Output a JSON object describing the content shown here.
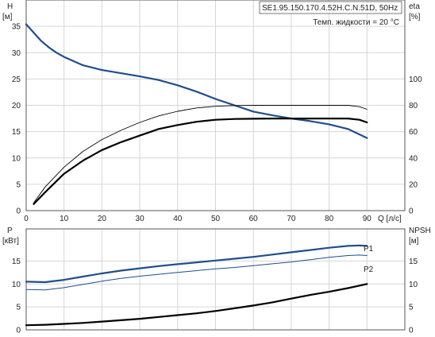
{
  "chart_data": [
    {
      "type": "line",
      "title": "SE1.95.150.170.4.52H.C.N.51D, 50Hz",
      "note": "Темп. жидкости = 20 °C",
      "xlabel": "Q [л/с]",
      "xlim": [
        0,
        100
      ],
      "xticks": [
        0,
        10,
        20,
        30,
        40,
        50,
        60,
        70,
        80,
        90
      ],
      "grid": true,
      "y_left": {
        "label_top": "H",
        "label_unit": "[м]",
        "lim": [
          0,
          40
        ],
        "ticks": [
          0,
          5,
          10,
          15,
          20,
          25,
          30,
          35
        ]
      },
      "y_right": {
        "label_top": "eta",
        "label_unit": "[%]",
        "lim": [
          0,
          160
        ],
        "ticks": [
          0,
          20,
          40,
          60,
          80,
          100
        ]
      },
      "series": [
        {
          "axis": "left",
          "color": "#1f4e8c",
          "width": 2.2,
          "x": [
            0,
            2,
            4,
            6,
            8,
            10,
            15,
            20,
            25,
            30,
            35,
            40,
            45,
            50,
            55,
            60,
            65,
            70,
            75,
            80,
            85,
            90
          ],
          "y": [
            35.4,
            33.8,
            32.2,
            31.0,
            30.0,
            29.2,
            27.6,
            26.7,
            26.1,
            25.5,
            24.8,
            23.8,
            22.6,
            21.2,
            20.0,
            18.8,
            18.1,
            17.5,
            17.0,
            16.4,
            15.5,
            13.8
          ]
        },
        {
          "axis": "right",
          "color": "#000000",
          "width": 0.9,
          "x": [
            2,
            5,
            10,
            15,
            20,
            25,
            30,
            35,
            40,
            45,
            50,
            55,
            60,
            65,
            70,
            75,
            80,
            85,
            88,
            90
          ],
          "y": [
            6,
            18,
            33,
            45,
            54,
            61,
            67,
            72,
            75.5,
            78,
            79.3,
            79.8,
            80,
            80,
            80,
            80,
            80,
            80,
            79,
            77
          ]
        },
        {
          "axis": "right",
          "color": "#000000",
          "width": 2.2,
          "x": [
            2,
            5,
            10,
            15,
            20,
            25,
            30,
            35,
            40,
            45,
            50,
            55,
            60,
            65,
            70,
            75,
            80,
            85,
            88,
            90
          ],
          "y": [
            5,
            14,
            28,
            38,
            46,
            52,
            57,
            62,
            65,
            67.5,
            69,
            69.6,
            69.8,
            70,
            70,
            70,
            70,
            70,
            69,
            67
          ]
        }
      ]
    },
    {
      "type": "line",
      "xlim": [
        0,
        100
      ],
      "grid": true,
      "y_left": {
        "label_top": "P",
        "label_unit": "[кВт]",
        "lim": [
          0,
          22
        ],
        "ticks": [
          0,
          5,
          10,
          15
        ]
      },
      "y_right": {
        "label_top": "NPSH",
        "label_unit": "[м]",
        "lim": [
          0,
          22
        ],
        "ticks": [
          0,
          5,
          10,
          15
        ]
      },
      "series": [
        {
          "name": "P1",
          "axis": "left",
          "color": "#1f4e8c",
          "width": 2.2,
          "x": [
            0,
            5,
            10,
            15,
            20,
            25,
            30,
            35,
            40,
            45,
            50,
            55,
            60,
            65,
            70,
            75,
            80,
            85,
            88,
            90
          ],
          "y": [
            10.5,
            10.4,
            10.9,
            11.6,
            12.3,
            12.9,
            13.4,
            13.9,
            14.3,
            14.7,
            15.1,
            15.5,
            15.9,
            16.4,
            16.9,
            17.4,
            17.9,
            18.3,
            18.4,
            18.3
          ]
        },
        {
          "name": "P2",
          "axis": "left",
          "color": "#1f4e8c",
          "width": 1.0,
          "x": [
            0,
            5,
            10,
            15,
            20,
            25,
            30,
            35,
            40,
            45,
            50,
            55,
            60,
            65,
            70,
            75,
            80,
            85,
            88,
            90
          ],
          "y": [
            8.8,
            8.7,
            9.2,
            9.9,
            10.6,
            11.2,
            11.7,
            12.1,
            12.5,
            12.9,
            13.3,
            13.6,
            14.0,
            14.4,
            14.8,
            15.3,
            15.8,
            16.2,
            16.3,
            16.2
          ]
        },
        {
          "axis": "right",
          "color": "#000000",
          "width": 2.2,
          "x": [
            0,
            5,
            10,
            15,
            20,
            25,
            30,
            35,
            40,
            45,
            50,
            55,
            60,
            65,
            70,
            75,
            80,
            85,
            90
          ],
          "y": [
            1.0,
            1.1,
            1.3,
            1.5,
            1.8,
            2.1,
            2.4,
            2.8,
            3.2,
            3.6,
            4.1,
            4.7,
            5.3,
            6.0,
            6.8,
            7.6,
            8.3,
            9.1,
            10.0
          ]
        }
      ]
    }
  ]
}
